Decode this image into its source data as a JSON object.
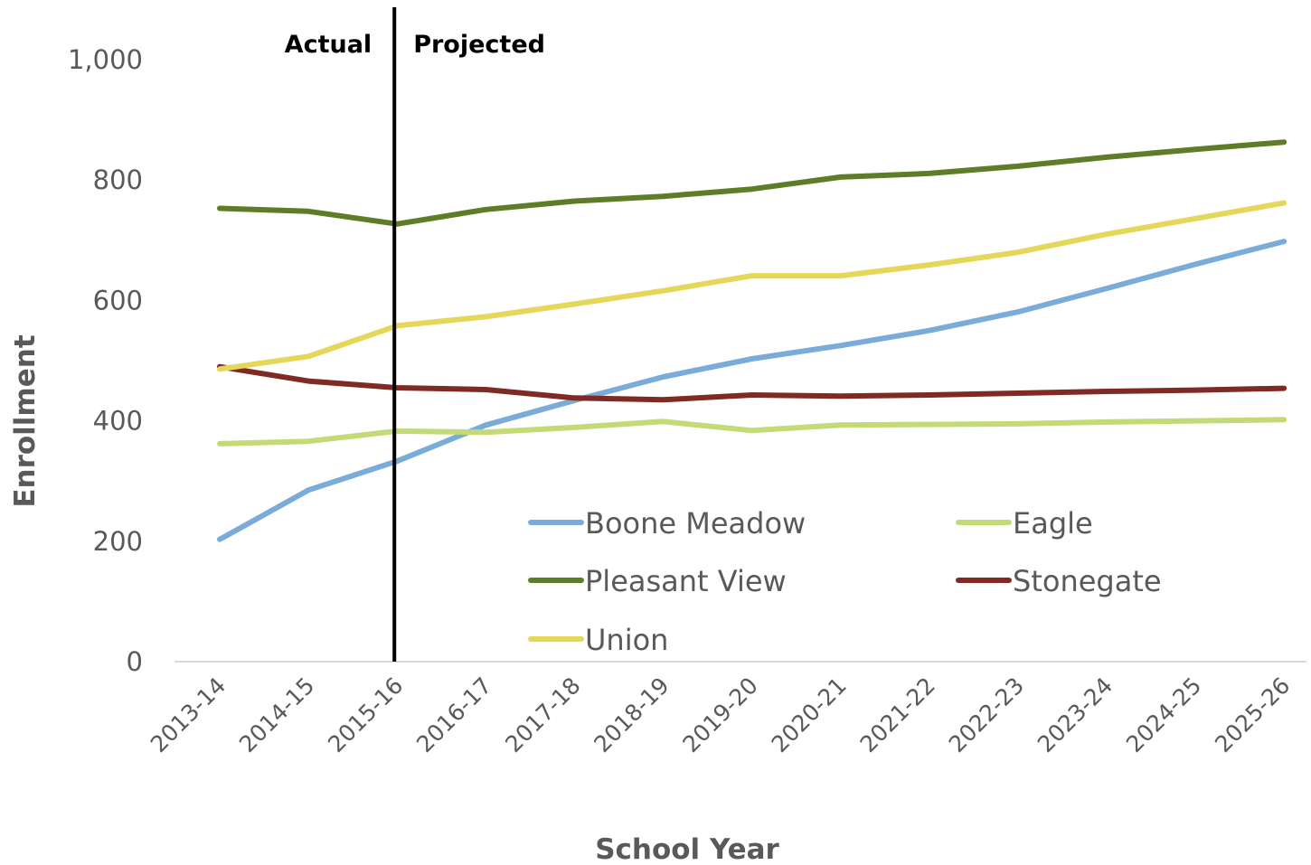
{
  "chart_data": {
    "type": "line",
    "title": "",
    "xlabel": "School Year",
    "ylabel": "Enrollment",
    "categories": [
      "2013-14",
      "2014-15",
      "2015-16",
      "2016-17",
      "2017-18",
      "2018-19",
      "2019-20",
      "2020-21",
      "2021-22",
      "2022-23",
      "2023-24",
      "2024-25",
      "2025-26"
    ],
    "ylim": [
      0,
      1000
    ],
    "yticks": [
      0,
      200,
      400,
      600,
      800,
      1000
    ],
    "ytick_labels": [
      "0",
      "200",
      "400",
      "600",
      "800",
      "1,000"
    ],
    "grid": false,
    "legend_position": "bottom-right inside",
    "divider": {
      "after_category": "2015-16",
      "left_label": "Actual",
      "right_label": "Projected"
    },
    "series": [
      {
        "name": "Boone Meadow",
        "color": "#7aacd9",
        "values": [
          203,
          285,
          333,
          393,
          434,
          473,
          503,
          525,
          550,
          581,
          620,
          660,
          698
        ]
      },
      {
        "name": "Eagle",
        "color": "#c3da77",
        "values": [
          362,
          366,
          383,
          381,
          389,
          399,
          384,
          393,
          394,
          395,
          398,
          400,
          402
        ]
      },
      {
        "name": "Pleasant View",
        "color": "#5f7d27",
        "values": [
          753,
          748,
          727,
          751,
          765,
          773,
          785,
          805,
          811,
          823,
          838,
          851,
          863
        ]
      },
      {
        "name": "Stonegate",
        "color": "#7f2a25",
        "values": [
          490,
          466,
          455,
          452,
          438,
          435,
          443,
          441,
          443,
          446,
          449,
          451,
          454
        ]
      },
      {
        "name": "Union",
        "color": "#e5d75a",
        "values": [
          486,
          507,
          558,
          573,
          594,
          616,
          641,
          641,
          659,
          680,
          710,
          736,
          762
        ]
      }
    ]
  }
}
